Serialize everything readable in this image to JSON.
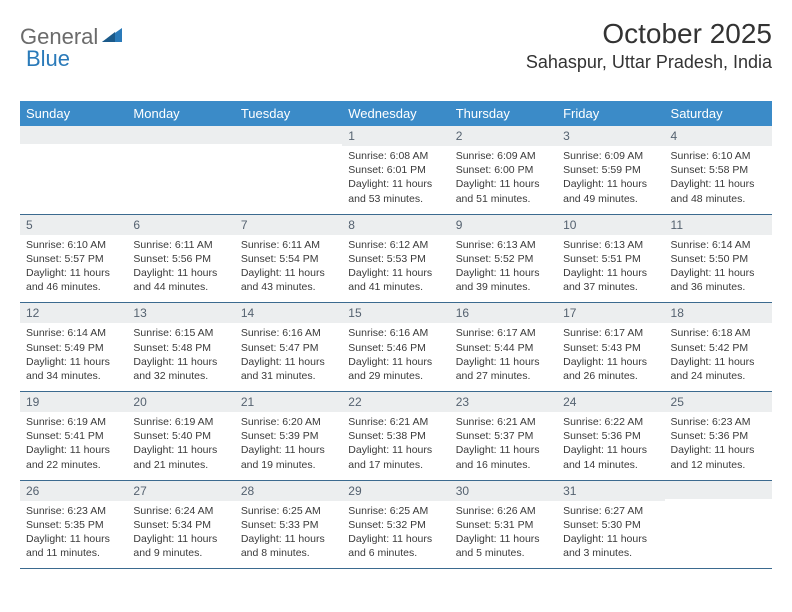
{
  "brand": {
    "word1": "General",
    "word2": "Blue"
  },
  "title": "October 2025",
  "location": "Sahaspur, Uttar Pradesh, India",
  "colors": {
    "header_bg": "#3b8bc8",
    "header_text": "#ffffff",
    "daynum_bg": "#eceeef",
    "daynum_text": "#556270",
    "row_border": "#3b6a8f",
    "page_bg": "#ffffff",
    "body_text": "#3a3a3a",
    "logo_gray": "#6b6b6b",
    "logo_blue": "#2a7ab9"
  },
  "fonts": {
    "title_size_pt": 21,
    "location_size_pt": 13,
    "day_header_size_pt": 10,
    "daynum_size_pt": 9,
    "body_size_pt": 8
  },
  "day_names": [
    "Sunday",
    "Monday",
    "Tuesday",
    "Wednesday",
    "Thursday",
    "Friday",
    "Saturday"
  ],
  "weeks": [
    [
      {
        "n": "",
        "l": [
          "",
          "",
          "",
          ""
        ]
      },
      {
        "n": "",
        "l": [
          "",
          "",
          "",
          ""
        ]
      },
      {
        "n": "",
        "l": [
          "",
          "",
          "",
          ""
        ]
      },
      {
        "n": "1",
        "l": [
          "Sunrise: 6:08 AM",
          "Sunset: 6:01 PM",
          "Daylight: 11 hours",
          "and 53 minutes."
        ]
      },
      {
        "n": "2",
        "l": [
          "Sunrise: 6:09 AM",
          "Sunset: 6:00 PM",
          "Daylight: 11 hours",
          "and 51 minutes."
        ]
      },
      {
        "n": "3",
        "l": [
          "Sunrise: 6:09 AM",
          "Sunset: 5:59 PM",
          "Daylight: 11 hours",
          "and 49 minutes."
        ]
      },
      {
        "n": "4",
        "l": [
          "Sunrise: 6:10 AM",
          "Sunset: 5:58 PM",
          "Daylight: 11 hours",
          "and 48 minutes."
        ]
      }
    ],
    [
      {
        "n": "5",
        "l": [
          "Sunrise: 6:10 AM",
          "Sunset: 5:57 PM",
          "Daylight: 11 hours",
          "and 46 minutes."
        ]
      },
      {
        "n": "6",
        "l": [
          "Sunrise: 6:11 AM",
          "Sunset: 5:56 PM",
          "Daylight: 11 hours",
          "and 44 minutes."
        ]
      },
      {
        "n": "7",
        "l": [
          "Sunrise: 6:11 AM",
          "Sunset: 5:54 PM",
          "Daylight: 11 hours",
          "and 43 minutes."
        ]
      },
      {
        "n": "8",
        "l": [
          "Sunrise: 6:12 AM",
          "Sunset: 5:53 PM",
          "Daylight: 11 hours",
          "and 41 minutes."
        ]
      },
      {
        "n": "9",
        "l": [
          "Sunrise: 6:13 AM",
          "Sunset: 5:52 PM",
          "Daylight: 11 hours",
          "and 39 minutes."
        ]
      },
      {
        "n": "10",
        "l": [
          "Sunrise: 6:13 AM",
          "Sunset: 5:51 PM",
          "Daylight: 11 hours",
          "and 37 minutes."
        ]
      },
      {
        "n": "11",
        "l": [
          "Sunrise: 6:14 AM",
          "Sunset: 5:50 PM",
          "Daylight: 11 hours",
          "and 36 minutes."
        ]
      }
    ],
    [
      {
        "n": "12",
        "l": [
          "Sunrise: 6:14 AM",
          "Sunset: 5:49 PM",
          "Daylight: 11 hours",
          "and 34 minutes."
        ]
      },
      {
        "n": "13",
        "l": [
          "Sunrise: 6:15 AM",
          "Sunset: 5:48 PM",
          "Daylight: 11 hours",
          "and 32 minutes."
        ]
      },
      {
        "n": "14",
        "l": [
          "Sunrise: 6:16 AM",
          "Sunset: 5:47 PM",
          "Daylight: 11 hours",
          "and 31 minutes."
        ]
      },
      {
        "n": "15",
        "l": [
          "Sunrise: 6:16 AM",
          "Sunset: 5:46 PM",
          "Daylight: 11 hours",
          "and 29 minutes."
        ]
      },
      {
        "n": "16",
        "l": [
          "Sunrise: 6:17 AM",
          "Sunset: 5:44 PM",
          "Daylight: 11 hours",
          "and 27 minutes."
        ]
      },
      {
        "n": "17",
        "l": [
          "Sunrise: 6:17 AM",
          "Sunset: 5:43 PM",
          "Daylight: 11 hours",
          "and 26 minutes."
        ]
      },
      {
        "n": "18",
        "l": [
          "Sunrise: 6:18 AM",
          "Sunset: 5:42 PM",
          "Daylight: 11 hours",
          "and 24 minutes."
        ]
      }
    ],
    [
      {
        "n": "19",
        "l": [
          "Sunrise: 6:19 AM",
          "Sunset: 5:41 PM",
          "Daylight: 11 hours",
          "and 22 minutes."
        ]
      },
      {
        "n": "20",
        "l": [
          "Sunrise: 6:19 AM",
          "Sunset: 5:40 PM",
          "Daylight: 11 hours",
          "and 21 minutes."
        ]
      },
      {
        "n": "21",
        "l": [
          "Sunrise: 6:20 AM",
          "Sunset: 5:39 PM",
          "Daylight: 11 hours",
          "and 19 minutes."
        ]
      },
      {
        "n": "22",
        "l": [
          "Sunrise: 6:21 AM",
          "Sunset: 5:38 PM",
          "Daylight: 11 hours",
          "and 17 minutes."
        ]
      },
      {
        "n": "23",
        "l": [
          "Sunrise: 6:21 AM",
          "Sunset: 5:37 PM",
          "Daylight: 11 hours",
          "and 16 minutes."
        ]
      },
      {
        "n": "24",
        "l": [
          "Sunrise: 6:22 AM",
          "Sunset: 5:36 PM",
          "Daylight: 11 hours",
          "and 14 minutes."
        ]
      },
      {
        "n": "25",
        "l": [
          "Sunrise: 6:23 AM",
          "Sunset: 5:36 PM",
          "Daylight: 11 hours",
          "and 12 minutes."
        ]
      }
    ],
    [
      {
        "n": "26",
        "l": [
          "Sunrise: 6:23 AM",
          "Sunset: 5:35 PM",
          "Daylight: 11 hours",
          "and 11 minutes."
        ]
      },
      {
        "n": "27",
        "l": [
          "Sunrise: 6:24 AM",
          "Sunset: 5:34 PM",
          "Daylight: 11 hours",
          "and 9 minutes."
        ]
      },
      {
        "n": "28",
        "l": [
          "Sunrise: 6:25 AM",
          "Sunset: 5:33 PM",
          "Daylight: 11 hours",
          "and 8 minutes."
        ]
      },
      {
        "n": "29",
        "l": [
          "Sunrise: 6:25 AM",
          "Sunset: 5:32 PM",
          "Daylight: 11 hours",
          "and 6 minutes."
        ]
      },
      {
        "n": "30",
        "l": [
          "Sunrise: 6:26 AM",
          "Sunset: 5:31 PM",
          "Daylight: 11 hours",
          "and 5 minutes."
        ]
      },
      {
        "n": "31",
        "l": [
          "Sunrise: 6:27 AM",
          "Sunset: 5:30 PM",
          "Daylight: 11 hours",
          "and 3 minutes."
        ]
      },
      {
        "n": "",
        "l": [
          "",
          "",
          "",
          ""
        ]
      }
    ]
  ]
}
